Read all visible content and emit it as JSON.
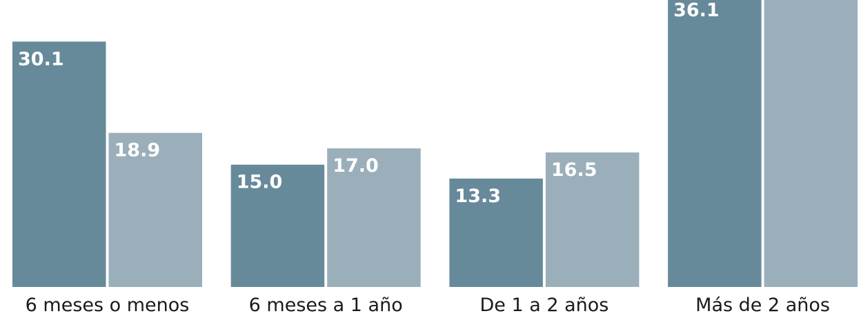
{
  "chart_data": {
    "type": "bar",
    "categories": [
      "6 meses o menos",
      "6 meses a 1 año",
      "De 1 a 2 años",
      "Más de 2 años"
    ],
    "series": [
      {
        "color": "#678a9a",
        "values": [
          30.1,
          15.0,
          13.3,
          36.1
        ],
        "value_labels": [
          "30.1",
          "15.0",
          "13.3",
          "36.1"
        ]
      },
      {
        "color": "#9aafb9",
        "values": [
          18.9,
          17.0,
          16.5,
          36
        ],
        "value_labels": [
          "18.9",
          "17.0",
          "16.5",
          null
        ]
      }
    ],
    "ylim": [
      0,
      35.2
    ]
  }
}
